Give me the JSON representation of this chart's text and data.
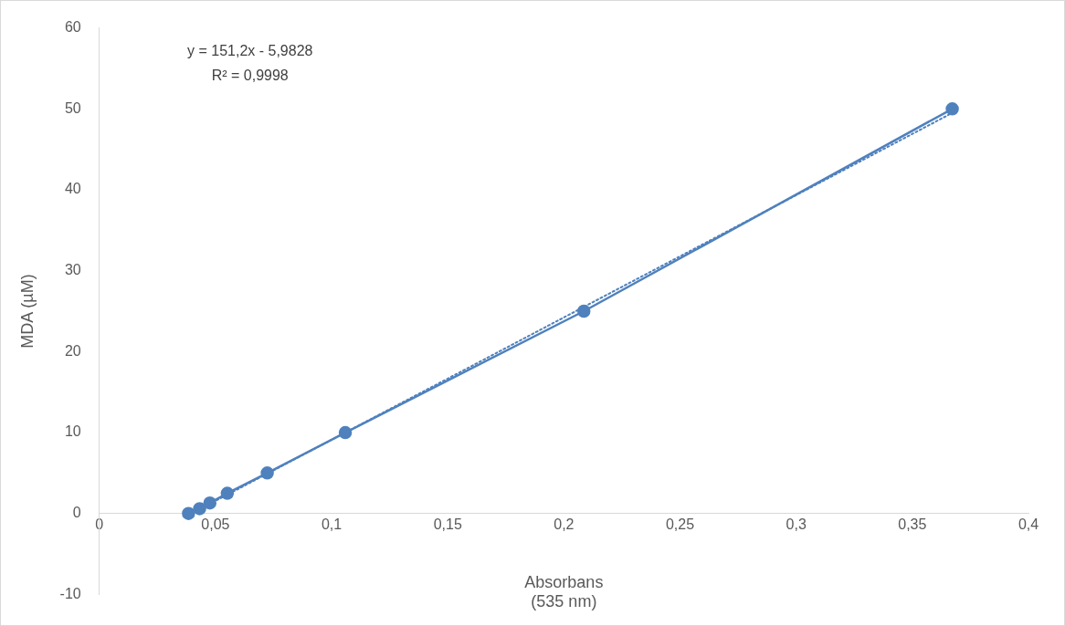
{
  "chart_data": {
    "type": "line",
    "xlabel": "Absorbans\n(535 nm)",
    "ylabel": "MDA (µM)",
    "series": [
      {
        "color": "#4f81bd",
        "x": [
          0.0384,
          0.0432,
          0.0476,
          0.0551,
          0.0723,
          0.1059,
          0.2086,
          0.3672
        ],
        "values": [
          0,
          0.6,
          1.3,
          2.5,
          5,
          10,
          25,
          50
        ],
        "marker": "circle",
        "line_style": "solid"
      },
      {
        "type": "line",
        "color": "#4f81bd",
        "x": [
          0.0384,
          0.3672
        ],
        "values": [
          -0.2,
          49.5
        ],
        "marker": "none",
        "line_style": "dotted"
      }
    ],
    "xlim": [
      0,
      0.4
    ],
    "xticks": [
      0,
      {
        "value": 0.05,
        "label": "0,05"
      },
      {
        "value": 0.1,
        "label": "0,1"
      },
      {
        "value": 0.15,
        "label": "0,15"
      },
      {
        "value": 0.2,
        "label": "0,2"
      },
      {
        "value": 0.25,
        "label": "0,25"
      },
      {
        "value": 0.3,
        "label": "0,3"
      },
      {
        "value": 0.35,
        "label": "0,35"
      },
      {
        "value": 0.4,
        "label": "0,4"
      }
    ],
    "ylim": [
      -10,
      60
    ],
    "yticks": [
      -10,
      0,
      10,
      20,
      30,
      40,
      50,
      60
    ],
    "grid": false,
    "legend": false,
    "annotations": [
      "y = 151,2x - 5,9828",
      "R² = 0,9998"
    ]
  }
}
